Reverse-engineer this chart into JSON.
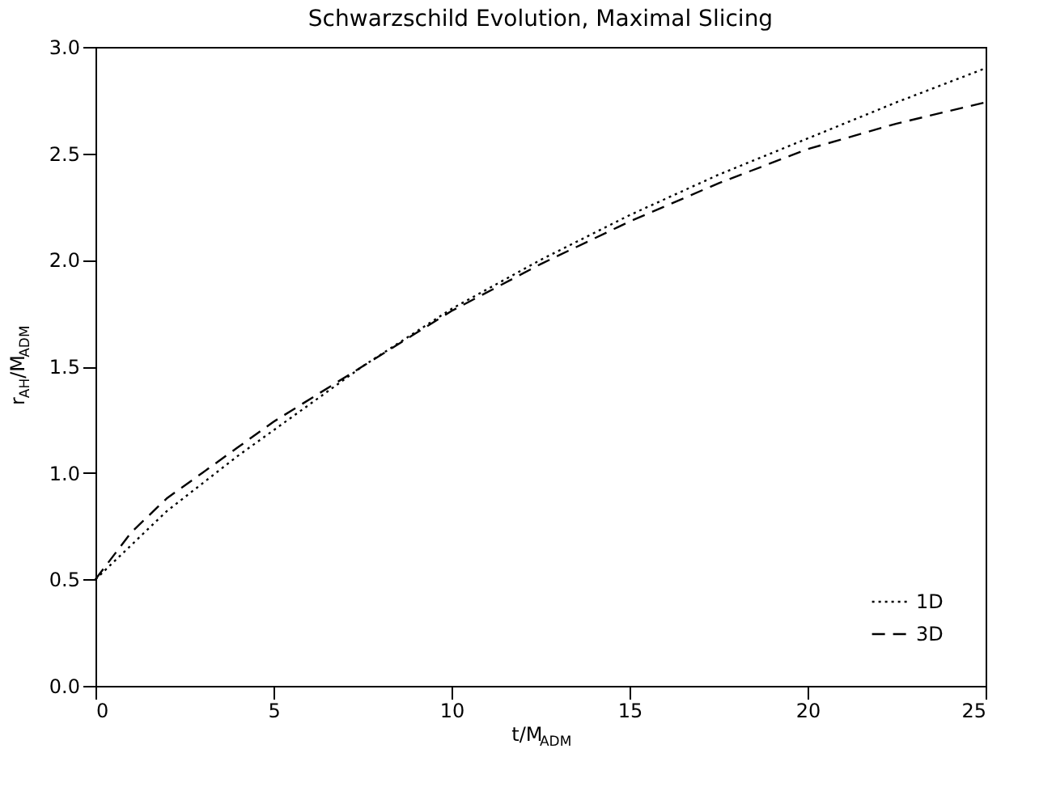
{
  "chart_data": {
    "type": "line",
    "title": "Schwarzschild Evolution, Maximal Slicing",
    "xlabel": "t/M$_{ADM}$",
    "ylabel": "r$_{AH}$/M$_{ADM}$",
    "x": [
      0,
      1,
      2,
      3,
      4,
      5,
      7.5,
      10,
      12.5,
      15,
      17.5,
      20,
      22.5,
      25
    ],
    "series": [
      {
        "name": "1D",
        "color": "#000000",
        "line_style": "dotted",
        "values": [
          0.5,
          0.66,
          0.82,
          0.95,
          1.08,
          1.2,
          1.5,
          1.77,
          2.0,
          2.21,
          2.4,
          2.57,
          2.74,
          2.9
        ]
      },
      {
        "name": "3D",
        "color": "#000000",
        "line_style": "dashed",
        "values": [
          0.5,
          0.72,
          0.88,
          1.0,
          1.12,
          1.24,
          1.5,
          1.76,
          1.98,
          2.18,
          2.36,
          2.52,
          2.64,
          2.74
        ]
      }
    ],
    "xlim": [
      0,
      25
    ],
    "xticks": [
      0,
      5,
      10,
      15,
      20,
      25
    ],
    "ylim": [
      0,
      3
    ],
    "yticks": [
      {
        "value": 0,
        "label": "0.0"
      },
      {
        "value": 0.5,
        "label": "0.5"
      },
      {
        "value": 1,
        "label": "1.0"
      },
      {
        "value": 1.5,
        "label": "1.5"
      },
      {
        "value": 2,
        "label": "2.0"
      },
      {
        "value": 2.5,
        "label": "2.5"
      },
      {
        "value": 3,
        "label": "3.0"
      }
    ],
    "grid": false,
    "legend": "bottom right",
    "marker": "none"
  }
}
